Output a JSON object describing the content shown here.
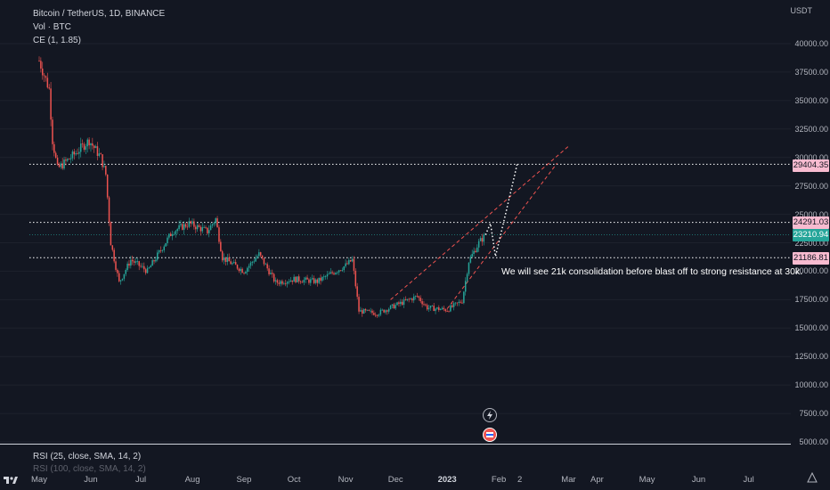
{
  "legend": {
    "title": "Bitcoin / TetherUS, 1D, BINANCE",
    "volume": "Vol · BTC",
    "indicator": "CE (1, 1.85)"
  },
  "price_axis": {
    "currency": "USDT",
    "labels": [
      "40000.00",
      "37500.00",
      "35000.00",
      "32500.00",
      "30000.00",
      "27500.00",
      "25000.00",
      "22500.00",
      "20000.00",
      "17500.00",
      "15000.00",
      "12500.00",
      "10000.00",
      "7500.00",
      "5000.00"
    ]
  },
  "price_tags": {
    "resistance": "29404.35",
    "upper": "24291.03",
    "current": "23210.94",
    "support": "21186.81"
  },
  "annotation": "We will see 21k consolidation before blast off to strong resistance at 30k.",
  "rsi": {
    "label": "RSI (25, close, SMA, 14, 2)",
    "label2": "RSI (100, close, SMA, 14, 2)"
  },
  "time_axis": [
    "May",
    "Jun",
    "Jul",
    "Aug",
    "Sep",
    "Oct",
    "Nov",
    "Dec",
    "2023",
    "Feb",
    "2",
    "Mar",
    "Apr",
    "May",
    "Jun",
    "Jul"
  ],
  "colors": {
    "background": "#131722",
    "up": "#26a69a",
    "down": "#ef5350",
    "level_line": "#ffffff",
    "channel": "#ef5350",
    "tag_pink": "#f8bbd0"
  },
  "icons": [
    "tradingview-logo-icon",
    "gear-icon",
    "lightning-event-icon",
    "flag-event-icon"
  ],
  "chart_data": {
    "type": "candlestick",
    "title": "Bitcoin / TetherUS, 1D, BINANCE",
    "ylim": [
      5000,
      42000
    ],
    "levels": [
      29404.35,
      24291.03,
      21186.81
    ],
    "current_price": 23210.94,
    "path": [
      [
        "2022-05-01",
        38500
      ],
      [
        "2022-05-07",
        36000
      ],
      [
        "2022-05-09",
        31500
      ],
      [
        "2022-05-12",
        29000
      ],
      [
        "2022-05-20",
        30000
      ],
      [
        "2022-05-31",
        31500
      ],
      [
        "2022-06-07",
        30000
      ],
      [
        "2022-06-10",
        28500
      ],
      [
        "2022-06-13",
        22500
      ],
      [
        "2022-06-18",
        19000
      ],
      [
        "2022-06-25",
        21000
      ],
      [
        "2022-07-05",
        20000
      ],
      [
        "2022-07-20",
        23500
      ],
      [
        "2022-07-30",
        24200
      ],
      [
        "2022-08-10",
        23500
      ],
      [
        "2022-08-15",
        24600
      ],
      [
        "2022-08-19",
        21200
      ],
      [
        "2022-09-01",
        20000
      ],
      [
        "2022-09-10",
        21500
      ],
      [
        "2022-09-20",
        19000
      ],
      [
        "2022-10-01",
        19300
      ],
      [
        "2022-10-15",
        19100
      ],
      [
        "2022-11-01",
        20500
      ],
      [
        "2022-11-05",
        21000
      ],
      [
        "2022-11-09",
        16500
      ],
      [
        "2022-11-20",
        16300
      ],
      [
        "2022-12-01",
        17000
      ],
      [
        "2022-12-14",
        17800
      ],
      [
        "2022-12-20",
        16800
      ],
      [
        "2023-01-01",
        16600
      ],
      [
        "2023-01-10",
        17400
      ],
      [
        "2023-01-14",
        20900
      ],
      [
        "2023-01-20",
        22500
      ],
      [
        "2023-01-24",
        23200
      ]
    ],
    "projection": [
      [
        "2023-01-24",
        23200
      ],
      [
        "2023-01-27",
        24200
      ],
      [
        "2023-01-30",
        21300
      ],
      [
        "2023-02-05",
        25000
      ],
      [
        "2023-02-12",
        29400
      ]
    ]
  }
}
